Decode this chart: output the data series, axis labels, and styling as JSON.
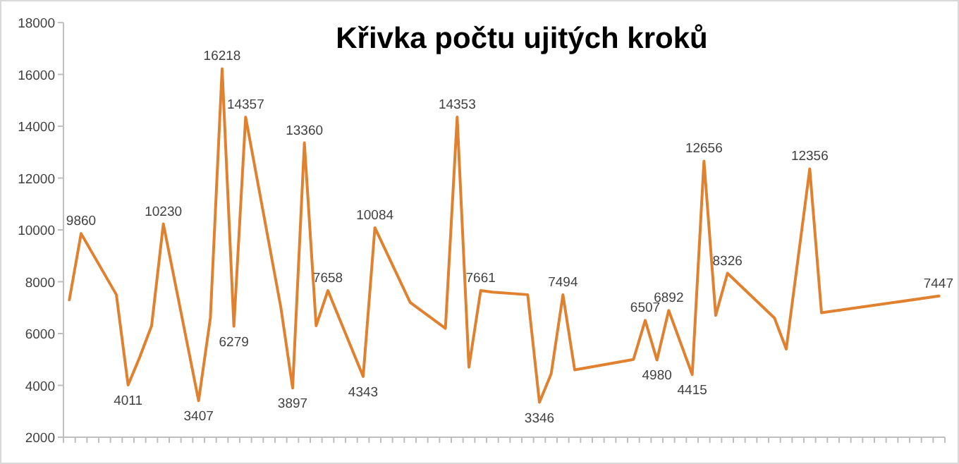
{
  "chart_data": {
    "type": "line",
    "title": "Křivka počtu ujitých kroků",
    "categories": [
      null,
      null,
      null,
      null,
      null,
      null,
      null,
      null,
      null,
      null,
      null,
      null,
      null,
      null,
      null,
      null,
      null,
      null,
      null,
      null,
      null,
      null,
      null,
      null,
      null,
      null,
      null,
      null,
      null,
      null,
      null,
      null,
      null,
      null,
      null,
      null,
      null,
      null,
      null,
      null,
      null,
      null,
      null,
      null,
      null,
      null,
      null,
      null,
      null,
      null,
      null,
      null,
      null,
      null,
      null,
      null,
      null,
      null,
      null,
      null,
      null,
      null,
      null,
      null,
      null,
      null,
      null,
      null,
      null,
      null,
      null,
      null,
      null,
      null,
      null
    ],
    "series": [
      {
        "color": "#e0812f",
        "values": [
          7300,
          9860,
          null,
          null,
          7500,
          4011,
          5100,
          6300,
          10230,
          null,
          null,
          3407,
          6600,
          16218,
          6279,
          14357,
          null,
          null,
          7000,
          3897,
          13360,
          6300,
          7658,
          null,
          null,
          4343,
          10084,
          null,
          null,
          7200,
          null,
          null,
          6200,
          14353,
          4700,
          7661,
          7600,
          null,
          null,
          7500,
          3346,
          4450,
          7494,
          4600,
          null,
          null,
          null,
          null,
          5000,
          6507,
          4980,
          6892,
          null,
          4415,
          12656,
          6700,
          8326,
          null,
          null,
          null,
          6600,
          5400,
          null,
          12356,
          6800,
          null,
          null,
          null,
          null,
          null,
          null,
          null,
          null,
          null,
          7447
        ],
        "value_labels": [
          null,
          "9860",
          null,
          null,
          null,
          "4011",
          null,
          null,
          "10230",
          null,
          null,
          "3407",
          null,
          "16218",
          "6279",
          "14357",
          null,
          null,
          null,
          "3897",
          "13360",
          null,
          "7658",
          null,
          null,
          "4343",
          "10084",
          null,
          null,
          null,
          null,
          null,
          null,
          "14353",
          null,
          "7661",
          null,
          null,
          null,
          null,
          "3346",
          null,
          "7494",
          null,
          null,
          null,
          null,
          null,
          null,
          "6507",
          "4980",
          "6892",
          null,
          "4415",
          "12656",
          null,
          "8326",
          null,
          null,
          null,
          null,
          null,
          null,
          "12356",
          null,
          null,
          null,
          null,
          null,
          null,
          null,
          null,
          null,
          null,
          "7447"
        ]
      }
    ],
    "ylim": [
      2000,
      18000
    ],
    "yticks": [
      2000,
      4000,
      6000,
      8000,
      10000,
      12000,
      14000,
      16000,
      18000
    ],
    "tick_labels": "y",
    "grid": false,
    "marker": "none",
    "line_style": "solid"
  }
}
